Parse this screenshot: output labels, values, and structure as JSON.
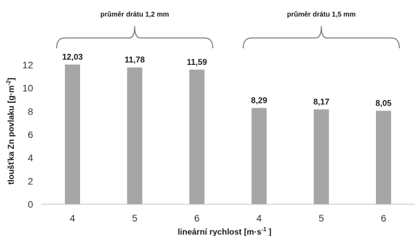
{
  "chart_data": {
    "type": "bar",
    "categories": [
      "4",
      "5",
      "6",
      "4",
      "5",
      "6"
    ],
    "values": [
      12.03,
      11.78,
      11.59,
      8.29,
      8.17,
      8.05
    ],
    "data_labels": [
      "12,03",
      "11,78",
      "11,59",
      "8,29",
      "8,17",
      "8,05"
    ],
    "groups": [
      {
        "label": "průměr drátu 1,2 mm",
        "members": [
          0,
          1,
          2
        ]
      },
      {
        "label": "průměr drátu 1,5 mm",
        "members": [
          3,
          4,
          5
        ]
      }
    ],
    "xlabel": "lineární rychlost [m·s",
    "xlabel_sup": "-1",
    "xlabel_end": "]",
    "ylabel": "tloušťka Zn povlaku [g·m",
    "ylabel_sup": "-2",
    "ylabel_end": "]",
    "ylim": [
      0,
      12
    ],
    "yticks": [
      0,
      2,
      4,
      6,
      8,
      10,
      12
    ],
    "grid": false,
    "legend": "none",
    "bar_color": "#a6a6a6",
    "axis_color": "#bfbfbf",
    "bracket_color": "#7f7f7f"
  }
}
